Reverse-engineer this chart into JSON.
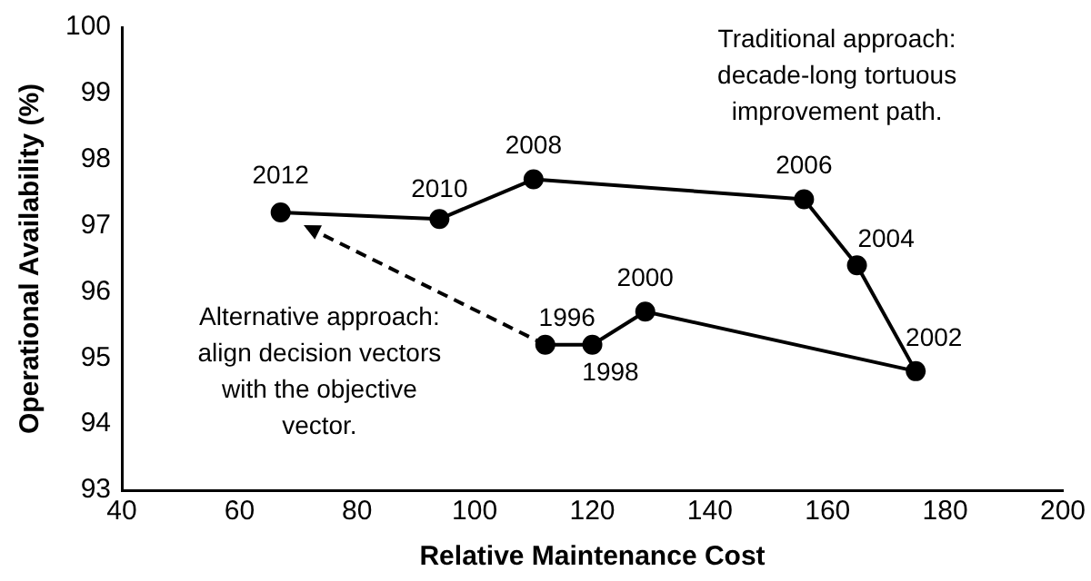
{
  "chart_data": {
    "type": "line",
    "xlabel": "Relative Maintenance Cost",
    "ylabel": "Operational Availability (%)",
    "series": [
      {
        "color": "#000000",
        "x": [
          112,
          120,
          129,
          175,
          165,
          156,
          110,
          94,
          67
        ],
        "values": [
          95.2,
          95.2,
          95.7,
          94.8,
          96.4,
          97.4,
          97.7,
          97.1,
          97.2
        ],
        "marker": "circle",
        "line_style": "solid"
      },
      {
        "color": "#000000",
        "x": [
          112,
          71
        ],
        "values": [
          95.2,
          97.0
        ],
        "marker": "none",
        "line_style": "dashed"
      }
    ],
    "xlim": [
      40,
      200
    ],
    "xticks": [
      40,
      60,
      80,
      100,
      120,
      140,
      160,
      180,
      200
    ],
    "ylim": [
      93,
      100
    ],
    "yticks": [
      93,
      94,
      95,
      96,
      97,
      98,
      99,
      100
    ],
    "grid": false,
    "legend": false,
    "annotations": [
      {
        "text": "1996",
        "x": 112,
        "y": 95.2
      },
      {
        "text": "1998",
        "x": 120,
        "y": 95.2
      },
      {
        "text": "2000",
        "x": 129,
        "y": 95.7
      },
      {
        "text": "2002",
        "x": 175,
        "y": 94.8
      },
      {
        "text": "2004",
        "x": 165,
        "y": 96.4
      },
      {
        "text": "2006",
        "x": 156,
        "y": 97.4
      },
      {
        "text": "2008",
        "x": 110,
        "y": 97.7
      },
      {
        "text": "2010",
        "x": 94,
        "y": 97.1
      },
      {
        "text": "2012",
        "x": 67,
        "y": 97.2
      },
      "Traditional approach: decade-long tortuous improvement path.",
      "Alternative approach: align decision vectors with the objective vector."
    ]
  }
}
